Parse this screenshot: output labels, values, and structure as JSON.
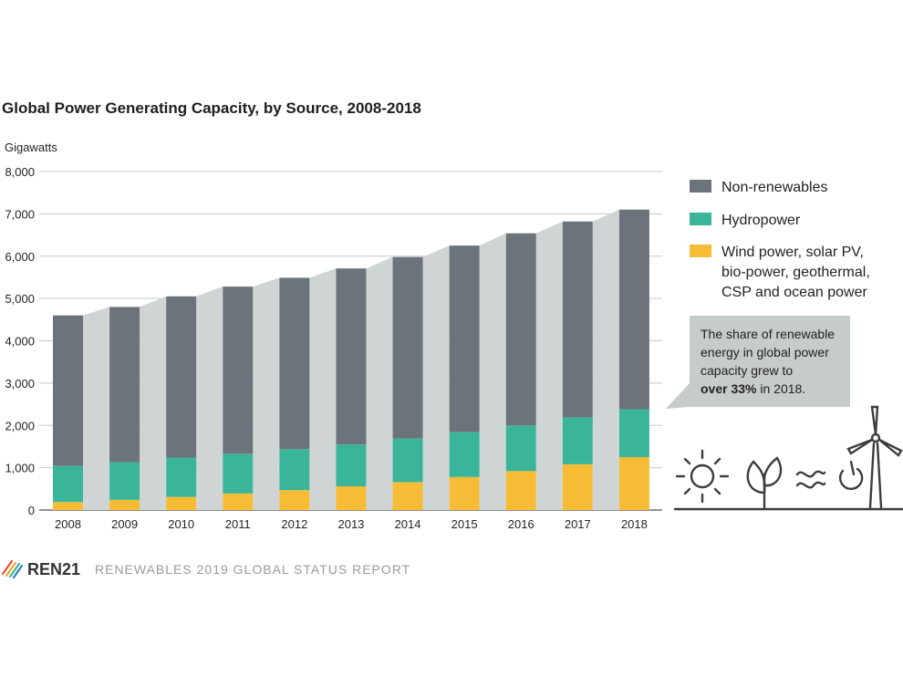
{
  "chart_data": {
    "type": "bar",
    "stacked": true,
    "title": "Global Power Generating Capacity, by Source, 2008-2018",
    "ylabel": "Gigawatts",
    "ylim": [
      0,
      8000
    ],
    "yticks": [
      "0",
      "1,000",
      "2,000",
      "3,000",
      "4,000",
      "5,000",
      "6,000",
      "7,000",
      "8,000"
    ],
    "categories": [
      "2008",
      "2009",
      "2010",
      "2011",
      "2012",
      "2013",
      "2014",
      "2015",
      "2016",
      "2017",
      "2018"
    ],
    "series": [
      {
        "name": "Wind power, solar PV, bio-power, geothermal, CSP and ocean power",
        "color": "#f7bc35",
        "values": [
          190,
          240,
          310,
          390,
          470,
          560,
          660,
          780,
          920,
          1080,
          1250
        ]
      },
      {
        "name": "Hydropower",
        "color": "#3ab59a",
        "values": [
          850,
          890,
          930,
          940,
          970,
          990,
          1030,
          1060,
          1080,
          1110,
          1130
        ]
      },
      {
        "name": "Non-renewables",
        "color": "#6c737b",
        "values": [
          3560,
          3670,
          3810,
          3950,
          4050,
          4160,
          4290,
          4410,
          4540,
          4630,
          4720
        ]
      }
    ],
    "grid": true,
    "legend_position": "right",
    "band_color": "#cfd5d4"
  },
  "legend": [
    {
      "lines": [
        "Non-renewables"
      ],
      "color": "#6c737b"
    },
    {
      "lines": [
        "Hydropower"
      ],
      "color": "#3ab59a"
    },
    {
      "lines": [
        "Wind power, solar PV,",
        "bio-power, geothermal,",
        "CSP and ocean power"
      ],
      "color": "#f7bc35"
    }
  ],
  "annotation": {
    "line1": "The share of renewable",
    "line2": "energy in global power",
    "line3": "capacity grew to",
    "highlight": "over 33%",
    "line4_rest": " in 2018."
  },
  "footer": {
    "brand": "REN21",
    "report": "RENEWABLES 2019 GLOBAL STATUS REPORT"
  },
  "icons": [
    "sun-icon",
    "leaf-icon",
    "wave-icon",
    "power-icon",
    "wind-turbine-icon"
  ]
}
